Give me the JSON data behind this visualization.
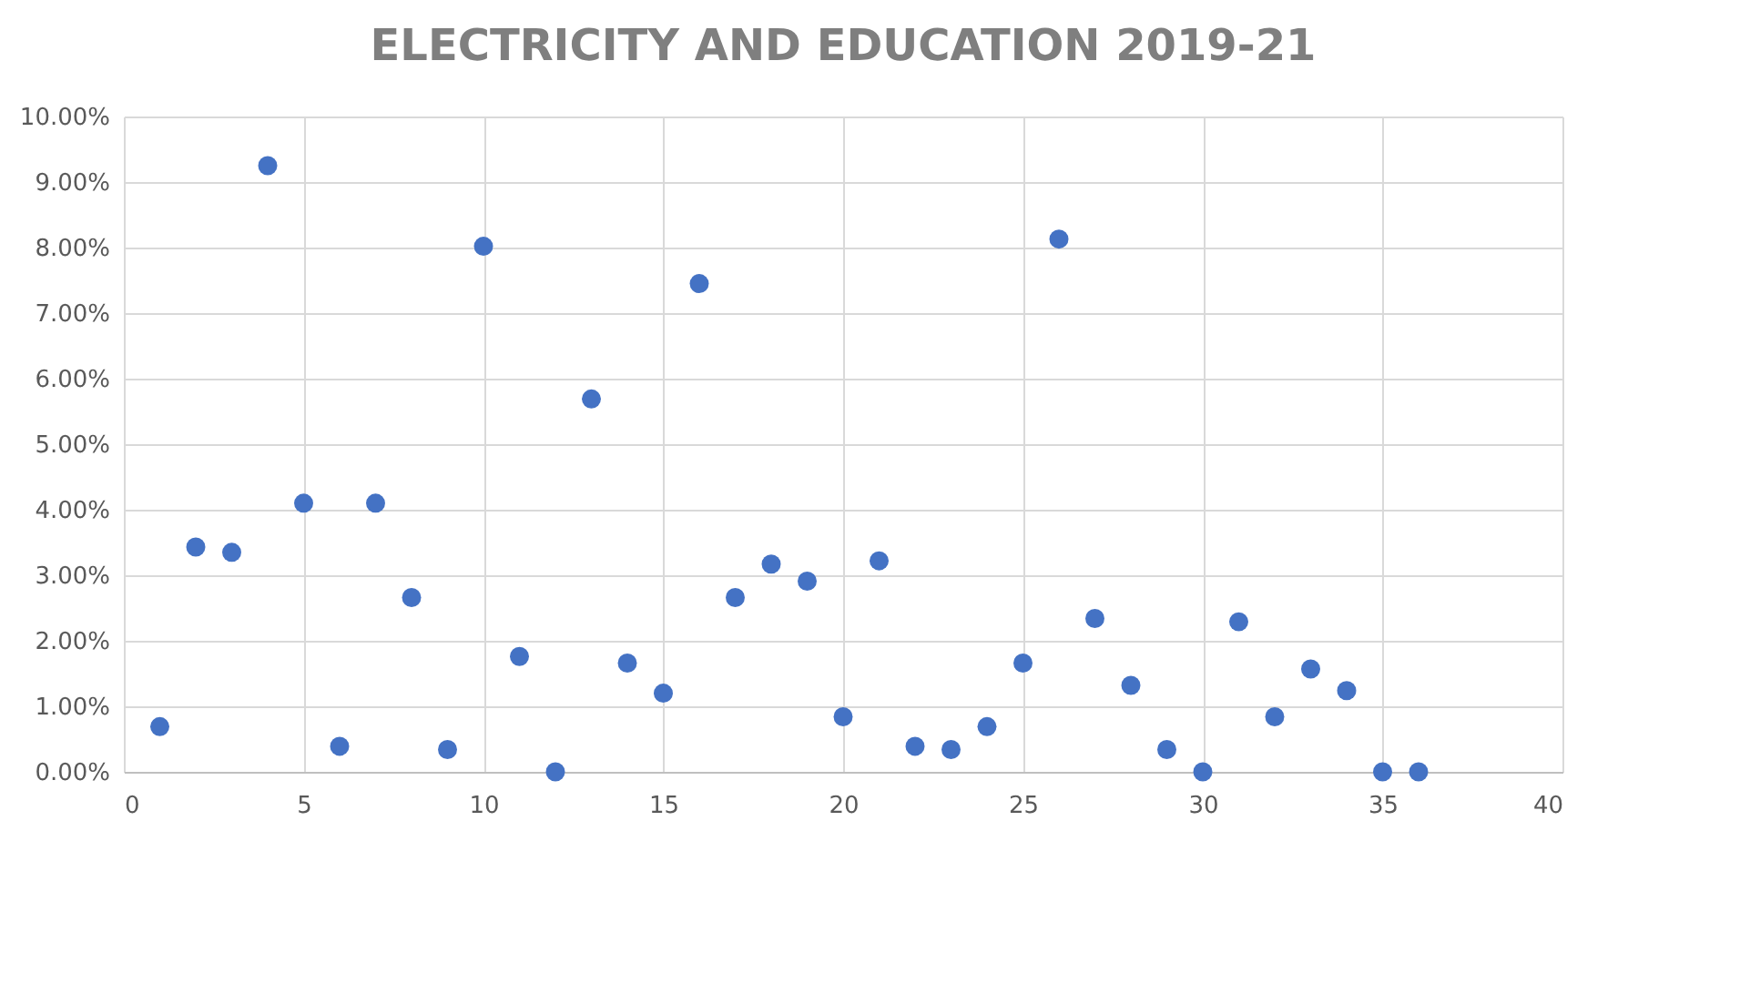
{
  "chart_data": {
    "type": "scatter",
    "title": "ELECTRICITY AND EDUCATION 2019-21",
    "x": [
      1,
      2,
      3,
      4,
      5,
      6,
      7,
      8,
      9,
      10,
      11,
      12,
      13,
      14,
      15,
      16,
      17,
      18,
      19,
      20,
      21,
      22,
      23,
      24,
      25,
      26,
      27,
      28,
      29,
      30,
      31,
      32,
      33,
      34,
      35,
      36
    ],
    "series": [
      {
        "color": "#4472c4",
        "values": [
          0.69,
          3.43,
          3.35,
          9.25,
          4.1,
          0.39,
          4.1,
          2.66,
          0.34,
          8.02,
          1.76,
          0,
          5.69,
          1.66,
          1.2,
          7.45,
          2.66,
          3.17,
          2.91,
          0.84,
          3.22,
          0.39,
          0.34,
          0.69,
          1.66,
          8.13,
          2.34,
          1.32,
          0.34,
          0,
          2.29,
          0.84,
          1.57,
          1.24,
          0,
          0
        ]
      }
    ],
    "xlim": [
      0,
      40
    ],
    "xticks": [
      0,
      5,
      10,
      15,
      20,
      25,
      30,
      35,
      40
    ],
    "ylim": [
      0,
      10
    ],
    "yticks": [
      {
        "value": 0,
        "label": "0.00%"
      },
      {
        "value": 1,
        "label": "1.00%"
      },
      {
        "value": 2,
        "label": "2.00%"
      },
      {
        "value": 3,
        "label": "3.00%"
      },
      {
        "value": 4,
        "label": "4.00%"
      },
      {
        "value": 5,
        "label": "5.00%"
      },
      {
        "value": 6,
        "label": "6.00%"
      },
      {
        "value": 7,
        "label": "7.00%"
      },
      {
        "value": 8,
        "label": "8.00%"
      },
      {
        "value": 9,
        "label": "9.00%"
      },
      {
        "value": 10,
        "label": "10.00%"
      }
    ],
    "grid": true,
    "marker": "circle",
    "legend": false
  }
}
